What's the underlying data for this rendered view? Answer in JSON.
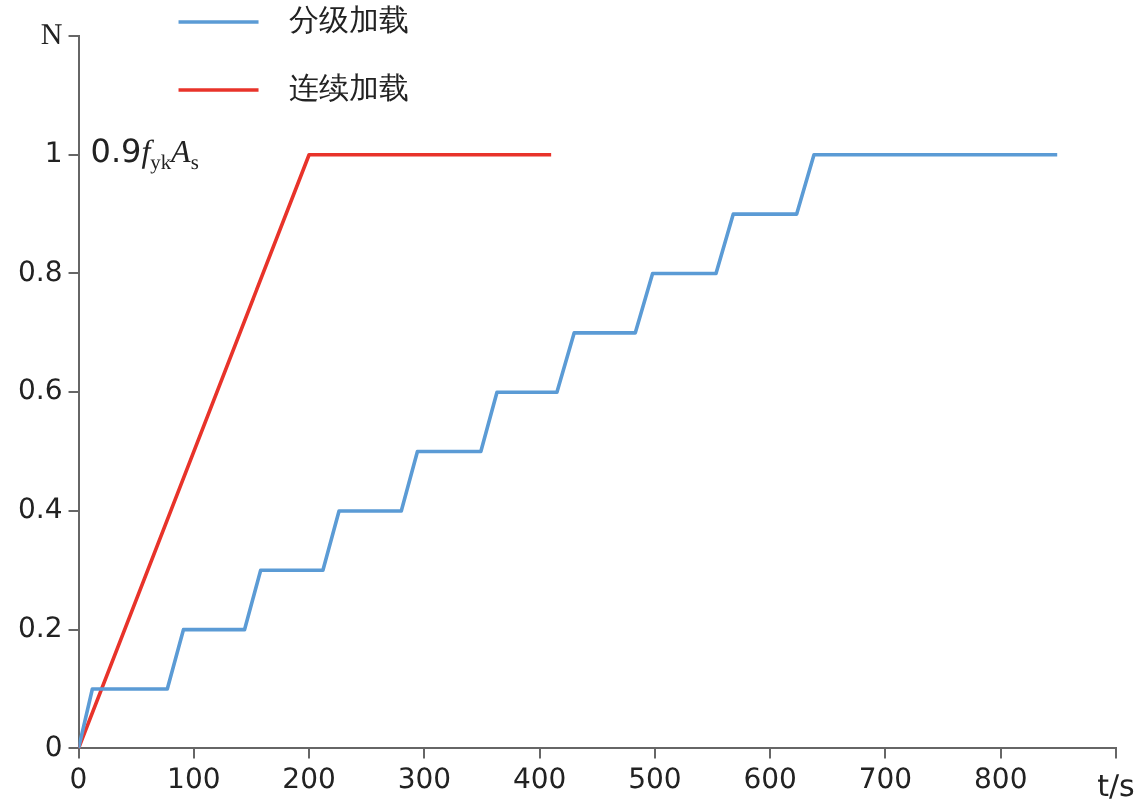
{
  "chart_data": {
    "type": "line",
    "xlabel": "t/s",
    "ylabel": "N",
    "series": [
      {
        "name": "分级加载",
        "color": "#5b9bd5",
        "x": [
          0,
          12,
          77,
          91,
          144,
          158,
          212,
          226,
          280,
          294,
          349,
          363,
          415,
          430,
          483,
          498,
          553,
          568,
          623,
          638,
          849
        ],
        "values": [
          0,
          0.1,
          0.1,
          0.2,
          0.2,
          0.3,
          0.3,
          0.4,
          0.4,
          0.5,
          0.5,
          0.6,
          0.6,
          0.7,
          0.7,
          0.8,
          0.8,
          0.9,
          0.9,
          1,
          1
        ]
      },
      {
        "name": "连续加载",
        "color": "#e8332a",
        "x": [
          0,
          200,
          410
        ],
        "values": [
          0,
          1,
          1
        ]
      }
    ],
    "xlim": [
      0,
      900
    ],
    "xticks": [
      0,
      100,
      200,
      300,
      400,
      500,
      600,
      700,
      800,
      {
        "value": 900,
        "label": null
      }
    ],
    "ylim": [
      0,
      1.2
    ],
    "yticks": [
      0,
      0.2,
      0.4,
      0.6,
      0.8,
      1,
      {
        "value": 1.2,
        "label": null
      }
    ],
    "annotations": [
      "0.9f$_{yk}$A$_{s}$"
    ],
    "grid": false,
    "legend": "top left",
    "marker": "none",
    "line_style": "solid"
  }
}
